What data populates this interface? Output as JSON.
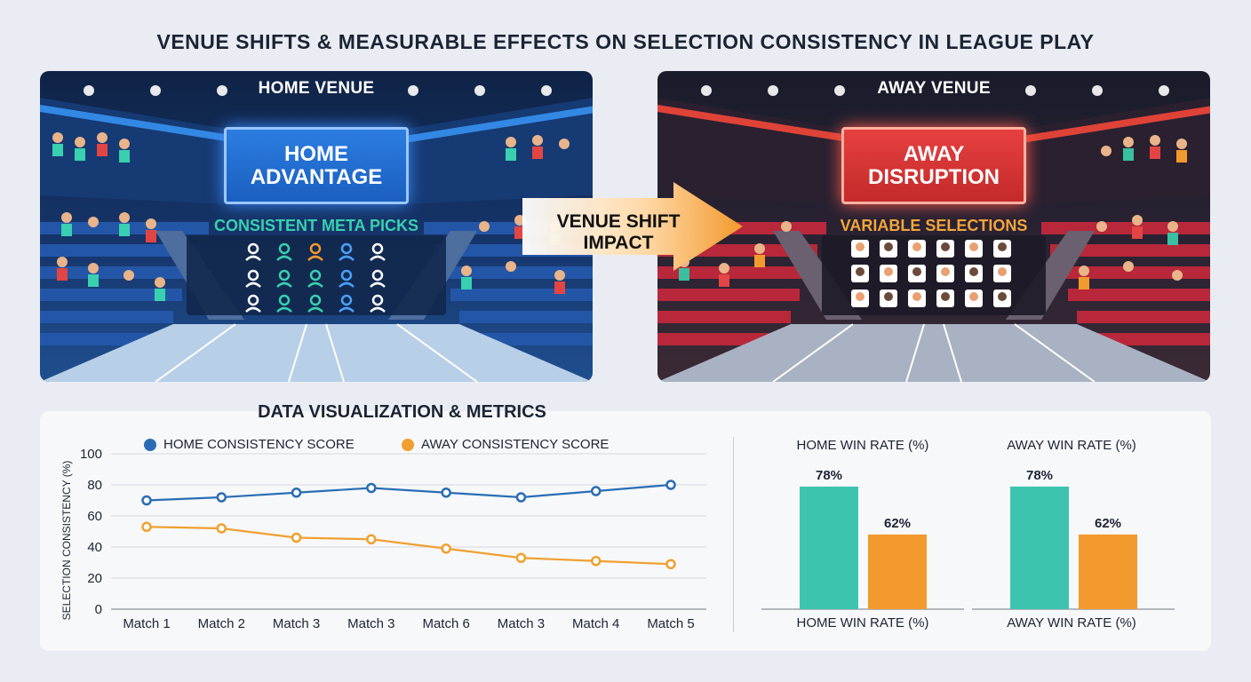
{
  "title": "VENUE SHIFTS & MEASURABLE EFFECTS ON SELECTION CONSISTENCY IN LEAGUE PLAY",
  "home_venue": {
    "label": "HOME VENUE",
    "screen_line1": "HOME",
    "screen_line2": "ADVANTAGE",
    "sub_label": "CONSISTENT META PICKS",
    "accent": "#2c7de0",
    "pick_color": "#38d0b0"
  },
  "away_venue": {
    "label": "AWAY VENUE",
    "screen_line1": "AWAY",
    "screen_line2": "DISRUPTION",
    "sub_label": "VARIABLE SELECTIONS",
    "accent": "#e64040",
    "pick_color": "#f4a53a"
  },
  "shift": {
    "line1": "VENUE SHIFT",
    "line2": "IMPACT",
    "icon": "right-arrow-icon"
  },
  "metrics_title": "DATA VISUALIZATION & METRICS",
  "chart_data": [
    {
      "type": "line",
      "title": "",
      "xlabel": "",
      "ylabel": "SELECTION CONSISTENCY (%)",
      "categories": [
        "Match 1",
        "Match 2",
        "Match 3",
        "Match 3",
        "Match 6",
        "Match 3",
        "Match 4",
        "Match 5"
      ],
      "ylim": [
        0,
        100
      ],
      "yticks": [
        0,
        20,
        40,
        60,
        80,
        100
      ],
      "grid": true,
      "legend_position": "top",
      "series": [
        {
          "name": "HOME CONSISTENCY SCORE",
          "color": "#2a6db5",
          "values": [
            70,
            72,
            75,
            78,
            75,
            72,
            76,
            80
          ]
        },
        {
          "name": "AWAY CONSISTENCY SCORE",
          "color": "#f0a030",
          "values": [
            53,
            52,
            46,
            45,
            39,
            33,
            31,
            29
          ]
        }
      ]
    },
    {
      "type": "bar",
      "title": "HOME WIN RATE (%)",
      "xlabel": "HOME WIN RATE (%)",
      "categories": [
        "",
        ""
      ],
      "values": [
        78,
        62
      ],
      "value_labels": [
        "78%",
        "62%"
      ],
      "colors": [
        "#3cc4b0",
        "#f39a2e"
      ]
    },
    {
      "type": "bar",
      "title": "AWAY WIN RATE (%)",
      "xlabel": "AWAY WIN RATE (%)",
      "categories": [
        "",
        ""
      ],
      "values": [
        78,
        62
      ],
      "value_labels": [
        "78%",
        "62%"
      ],
      "colors": [
        "#3cc4b0",
        "#f39a2e"
      ]
    }
  ]
}
